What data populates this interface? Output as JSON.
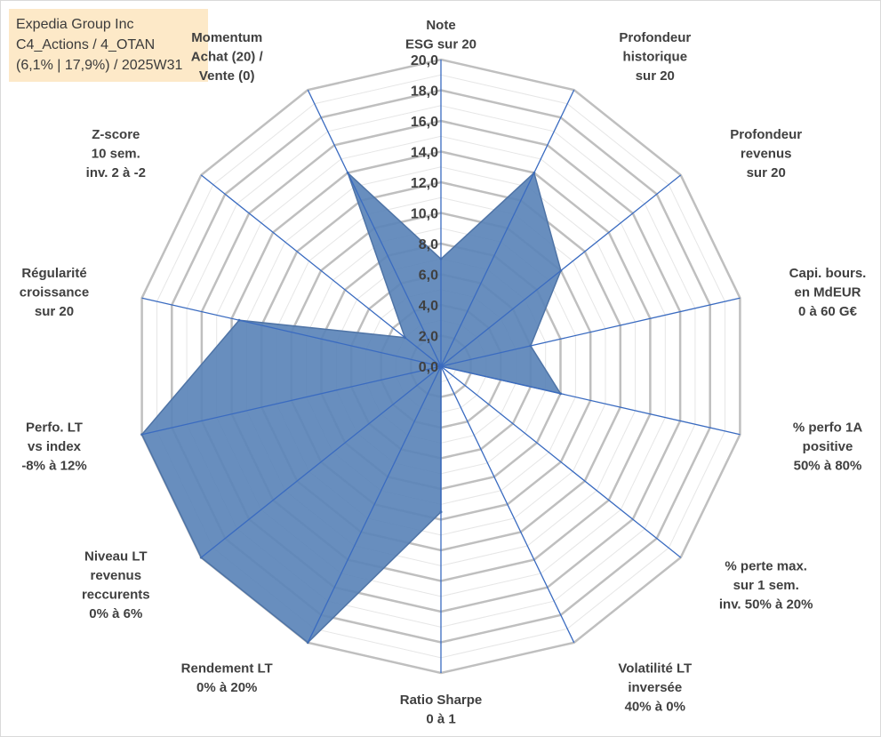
{
  "header": {
    "lines": [
      "Expedia Group Inc",
      "C4_Actions / 4_OTAN",
      "(6,1% | 17,9%) / 2025W31"
    ]
  },
  "chart_data": {
    "type": "radar",
    "title": "",
    "rmin": 0,
    "rmax": 20,
    "tick_step": 2,
    "minor_rings": 20,
    "tick_labels": [
      "0,0",
      "2,0",
      "4,0",
      "6,0",
      "8,0",
      "10,0",
      "12,0",
      "14,0",
      "16,0",
      "18,0",
      "20,0"
    ],
    "grid": true,
    "colors": {
      "fill": "#5b84b8",
      "stroke": "#4f74a6",
      "spoke": "#3a6bc0",
      "major_ring": "#bfbfbf",
      "minor_ring": "#e6e6e6"
    },
    "axes": [
      {
        "label": [
          "Note",
          "ESG sur 20"
        ],
        "value": 7.0
      },
      {
        "label": [
          "Profondeur",
          "historique",
          "sur 20"
        ],
        "value": 14.0
      },
      {
        "label": [
          "Profondeur",
          "revenus",
          "sur 20"
        ],
        "value": 10.0
      },
      {
        "label": [
          "Capi. bours.",
          "en MdEUR",
          "0 à 60 G€"
        ],
        "value": 6.0
      },
      {
        "label": [
          "% perfo 1A",
          "positive",
          "50% à 80%"
        ],
        "value": 8.0
      },
      {
        "label": [
          "% perte max.",
          "sur 1 sem.",
          "inv. 50% à 20%"
        ],
        "value": 0.0
      },
      {
        "label": [
          "Volatilité LT",
          "inversée",
          "40% à 0%"
        ],
        "value": 0.0
      },
      {
        "label": [
          "Ratio Sharpe",
          "0 à 1"
        ],
        "value": 9.5
      },
      {
        "label": [
          "Rendement LT",
          "0% à 20%"
        ],
        "value": 20.0
      },
      {
        "label": [
          "Niveau LT",
          "revenus",
          "reccurents",
          "0% à 6%"
        ],
        "value": 20.0
      },
      {
        "label": [
          "Perfo. LT",
          "vs index",
          "-8% à 12%"
        ],
        "value": 20.0
      },
      {
        "label": [
          "Régularité",
          "croissance",
          "sur 20"
        ],
        "value": 13.5
      },
      {
        "label": [
          "Z-score",
          "10 sem.",
          "inv. 2 à -2"
        ],
        "value": 3.0
      },
      {
        "label": [
          "Momentum",
          "Achat (20) /",
          "Vente (0)"
        ],
        "value": 14.0
      }
    ]
  }
}
